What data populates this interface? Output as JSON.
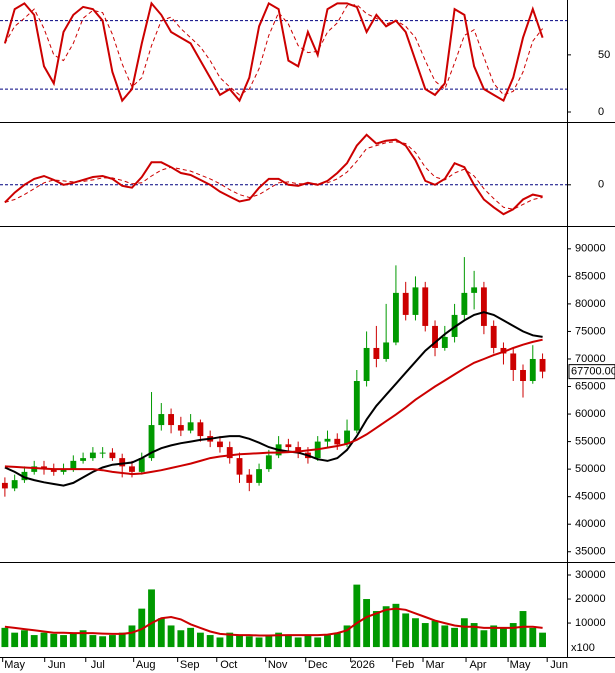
{
  "chart_data": [
    {
      "type": "line",
      "xlim": [
        -0.5,
        57.5
      ],
      "ylim": [
        -7,
        98
      ],
      "yticks": [
        0,
        50
      ],
      "levels": [
        20,
        80
      ],
      "level_color": "#000080",
      "series": [
        {
          "color": "#cc0000",
          "values": [
            60,
            90,
            95,
            85,
            40,
            25,
            70,
            85,
            92,
            90,
            80,
            35,
            10,
            20,
            60,
            95,
            85,
            70,
            65,
            60,
            45,
            30,
            15,
            20,
            10,
            30,
            75,
            95,
            90,
            45,
            40,
            70,
            50,
            90,
            95,
            95,
            92,
            70,
            85,
            75,
            80,
            70,
            45,
            20,
            15,
            25,
            90,
            85,
            40,
            20,
            15,
            10,
            30,
            65,
            90,
            65
          ]
        },
        {
          "color": "#cc0000",
          "dashed": true,
          "values": [
            60,
            75,
            82,
            90,
            73,
            50,
            45,
            60,
            82,
            89,
            87,
            68,
            42,
            22,
            30,
            58,
            80,
            83,
            73,
            65,
            57,
            45,
            30,
            22,
            15,
            20,
            38,
            67,
            87,
            77,
            58,
            52,
            53,
            70,
            78,
            93,
            94,
            86,
            82,
            77,
            80,
            75,
            65,
            45,
            27,
            20,
            43,
            67,
            72,
            48,
            25,
            15,
            18,
            35,
            62,
            73
          ]
        }
      ]
    },
    {
      "type": "line",
      "xlim": [
        -0.5,
        57.5
      ],
      "ylim": [
        -4000,
        6000
      ],
      "yticks": [
        0
      ],
      "levels": [
        0
      ],
      "level_color": "#000080",
      "series": [
        {
          "color": "#cc0000",
          "values": [
            -1800,
            -800,
            0,
            600,
            900,
            500,
            0,
            200,
            500,
            800,
            900,
            600,
            -100,
            -300,
            800,
            2300,
            2300,
            1800,
            1200,
            1000,
            500,
            0,
            -700,
            -1200,
            -1700,
            -1500,
            -300,
            600,
            600,
            0,
            -100,
            200,
            0,
            400,
            1200,
            2200,
            4000,
            5100,
            4200,
            4500,
            4600,
            4000,
            2500,
            400,
            0,
            600,
            2200,
            1800,
            0,
            -1500,
            -2300,
            -3000,
            -2500,
            -1500,
            -1000,
            -1200
          ]
        },
        {
          "color": "#cc0000",
          "dashed": true,
          "values": [
            -1800,
            -1500,
            -1000,
            -400,
            200,
            500,
            400,
            300,
            350,
            500,
            700,
            700,
            450,
            100,
            200,
            900,
            1500,
            1800,
            1600,
            1400,
            1000,
            600,
            100,
            -500,
            -1000,
            -1300,
            -1000,
            -400,
            200,
            300,
            100,
            100,
            100,
            200,
            600,
            1300,
            2400,
            3700,
            4000,
            4300,
            4400,
            4200,
            3300,
            1800,
            800,
            500,
            1200,
            1600,
            900,
            -400,
            -1400,
            -2300,
            -2500,
            -2000,
            -1500,
            -1300
          ]
        }
      ]
    },
    {
      "type": "candlestick",
      "xlim": [
        -0.5,
        57.5
      ],
      "ylim": [
        33500,
        93600
      ],
      "yticks": [
        35000,
        40000,
        45000,
        50000,
        55000,
        60000,
        65000,
        70000,
        75000,
        80000,
        85000,
        90000
      ],
      "up_color": "#009900",
      "down_color": "#cc0000",
      "open": [
        47500,
        46500,
        48000,
        49500,
        50500,
        50000,
        49500,
        50000,
        51500,
        52000,
        53000,
        53000,
        52000,
        50500,
        49500,
        52000,
        58000,
        60000,
        58000,
        57000,
        58500,
        56000,
        55000,
        54000,
        52000,
        49000,
        47500,
        50000,
        52500,
        54500,
        54000,
        53000,
        52000,
        55000,
        55500,
        54500,
        57000,
        66000,
        72000,
        70000,
        73000,
        82000,
        78000,
        83000,
        76000,
        72000,
        74000,
        78000,
        82000,
        83000,
        76000,
        72000,
        71000,
        68000,
        66000,
        70000
      ],
      "high": [
        48500,
        49000,
        50500,
        51500,
        51500,
        51000,
        51000,
        52500,
        53000,
        54000,
        54000,
        53800,
        52800,
        51500,
        53000,
        64000,
        62000,
        61000,
        59500,
        60000,
        59000,
        57000,
        56000,
        55000,
        53000,
        50000,
        51000,
        53500,
        56000,
        55500,
        55000,
        54000,
        56000,
        57000,
        56500,
        59000,
        68000,
        75000,
        76000,
        80000,
        87000,
        84000,
        85000,
        84000,
        77000,
        76000,
        80000,
        88500,
        86000,
        84000,
        77000,
        73000,
        72000,
        69000,
        72500,
        71000
      ],
      "low": [
        45000,
        46000,
        47500,
        49000,
        49000,
        48800,
        49000,
        49500,
        51000,
        51500,
        52000,
        51500,
        48500,
        48500,
        49000,
        51500,
        57000,
        56500,
        56000,
        56500,
        55000,
        54000,
        53000,
        51000,
        47500,
        46000,
        47000,
        49500,
        52000,
        53000,
        52000,
        51000,
        51500,
        54000,
        53500,
        54000,
        56500,
        65000,
        68500,
        69500,
        72500,
        77000,
        77000,
        75000,
        70500,
        71500,
        73000,
        77000,
        79000,
        74500,
        71000,
        69000,
        66000,
        63000,
        65500,
        66500
      ],
      "close": [
        46500,
        48000,
        49500,
        50500,
        50000,
        49500,
        50000,
        51500,
        52000,
        53000,
        53000,
        52000,
        50500,
        49500,
        52000,
        58000,
        60000,
        58000,
        57000,
        58500,
        56000,
        55000,
        54000,
        52000,
        49000,
        47500,
        50000,
        52500,
        54500,
        54000,
        53000,
        52000,
        55000,
        55500,
        54500,
        57000,
        66000,
        72000,
        70000,
        73000,
        82000,
        78000,
        83000,
        76000,
        72000,
        74000,
        78000,
        82000,
        83000,
        76000,
        72000,
        71000,
        68000,
        66000,
        70000,
        67700
      ],
      "last_value": {
        "value": 67700,
        "label": "67700.00"
      },
      "series": [
        {
          "color": "#000000",
          "values": [
            50300,
            49500,
            48500,
            48000,
            47600,
            47300,
            47000,
            47500,
            48500,
            49500,
            50300,
            50800,
            51000,
            51200,
            52000,
            53000,
            53800,
            54300,
            54700,
            55000,
            55300,
            55500,
            55800,
            56000,
            56000,
            55500,
            54800,
            54000,
            53500,
            53200,
            53000,
            52500,
            51800,
            51500,
            52000,
            53500,
            56000,
            59000,
            61500,
            63500,
            65500,
            67500,
            69500,
            71500,
            73000,
            74500,
            75800,
            77000,
            78000,
            78500,
            78000,
            77000,
            76000,
            75000,
            74300,
            74000
          ]
        },
        {
          "color": "#cc0000",
          "values": [
            50500,
            50400,
            50300,
            50200,
            50100,
            50000,
            50000,
            50000,
            50000,
            50000,
            49800,
            49500,
            49300,
            49100,
            49200,
            49500,
            49800,
            50200,
            50600,
            51000,
            51500,
            52000,
            52300,
            52500,
            52700,
            52800,
            52900,
            53000,
            53000,
            53100,
            53200,
            53400,
            53600,
            53900,
            54200,
            54600,
            55300,
            56300,
            57500,
            58700,
            59900,
            61200,
            62600,
            63800,
            65000,
            66100,
            67200,
            68300,
            69300,
            70000,
            70700,
            71300,
            72000,
            72600,
            73100,
            73500
          ]
        }
      ]
    },
    {
      "type": "bar",
      "xlim": [
        -0.5,
        57.5
      ],
      "ylim": [
        -3300,
        33750
      ],
      "yticks": [
        10000,
        20000,
        30000
      ],
      "unit_label": "x100",
      "color": "#009900",
      "values": [
        8000,
        6000,
        7000,
        5000,
        6000,
        5500,
        5000,
        6000,
        7000,
        5000,
        4500,
        5000,
        6000,
        9000,
        16000,
        24000,
        12000,
        9000,
        7000,
        8000,
        6000,
        5000,
        4000,
        6000,
        5000,
        4500,
        4000,
        5000,
        6000,
        5000,
        4000,
        5000,
        4000,
        5000,
        6000,
        9000,
        26000,
        20000,
        15000,
        17000,
        18000,
        14000,
        12000,
        10000,
        11000,
        9000,
        8000,
        12000,
        10000,
        7000,
        9000,
        8000,
        10000,
        15000,
        8000,
        6000
      ],
      "series": [
        {
          "color": "#cc0000",
          "values": [
            8500,
            8000,
            7500,
            7000,
            6500,
            6000,
            6000,
            5800,
            5800,
            5800,
            5600,
            5500,
            5500,
            6000,
            7500,
            10000,
            12000,
            12500,
            11500,
            9500,
            8000,
            6500,
            5500,
            5200,
            5000,
            5000,
            4800,
            4800,
            4900,
            5000,
            5000,
            5000,
            5000,
            5200,
            5800,
            7000,
            10000,
            12500,
            14000,
            15500,
            16000,
            15500,
            14000,
            12500,
            11000,
            10000,
            9000,
            8500,
            8500,
            8000,
            8000,
            8000,
            8000,
            8500,
            8500,
            8000
          ]
        }
      ],
      "xticks": [
        {
          "value": 1,
          "label": "May"
        },
        {
          "value": 5.3,
          "label": "Jun"
        },
        {
          "value": 9.5,
          "label": "Jul"
        },
        {
          "value": 14.4,
          "label": "Aug"
        },
        {
          "value": 18.9,
          "label": "Sep"
        },
        {
          "value": 22.9,
          "label": "Oct"
        },
        {
          "value": 27.9,
          "label": "Nov"
        },
        {
          "value": 32,
          "label": "Dec"
        },
        {
          "value": 36.6,
          "label": "2026"
        },
        {
          "value": 40.9,
          "label": "Feb"
        },
        {
          "value": 44,
          "label": "Mar"
        },
        {
          "value": 48.4,
          "label": "Apr"
        },
        {
          "value": 52.7,
          "label": "May"
        },
        {
          "value": 56.7,
          "label": "Jun"
        }
      ]
    }
  ]
}
